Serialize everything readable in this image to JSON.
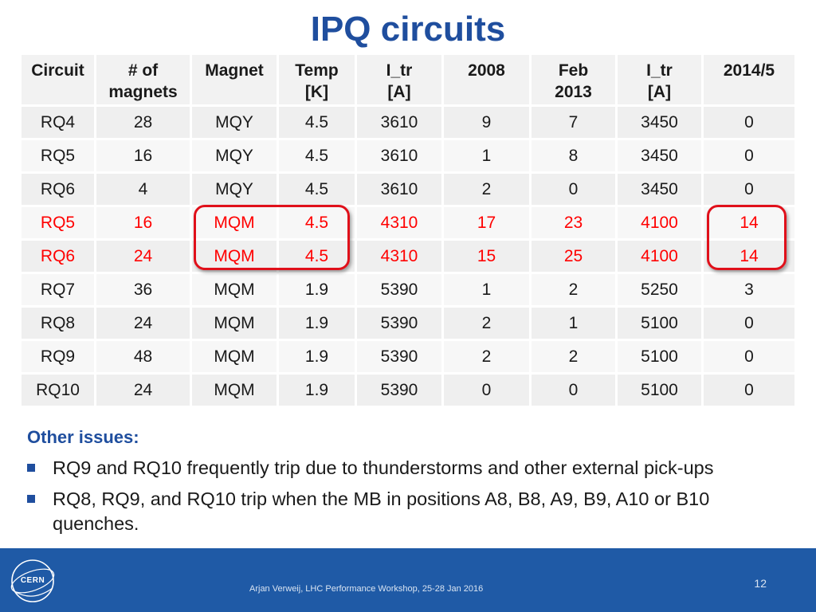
{
  "title": "IPQ circuits",
  "table": {
    "headers": [
      "Circuit",
      "# of\nmagnets",
      "Magnet",
      "Temp\n[K]",
      "I_tr\n[A]",
      "2008",
      "Feb\n2013",
      "I_tr\n[A]",
      "2014/5"
    ],
    "rows": [
      {
        "cells": [
          "RQ4",
          "28",
          "MQY",
          "4.5",
          "3610",
          "9",
          "7",
          "3450",
          "0"
        ],
        "highlight": false
      },
      {
        "cells": [
          "RQ5",
          "16",
          "MQY",
          "4.5",
          "3610",
          "1",
          "8",
          "3450",
          "0"
        ],
        "highlight": false
      },
      {
        "cells": [
          "RQ6",
          "4",
          "MQY",
          "4.5",
          "3610",
          "2",
          "0",
          "3450",
          "0"
        ],
        "highlight": false
      },
      {
        "cells": [
          "RQ5",
          "16",
          "MQM",
          "4.5",
          "4310",
          "17",
          "23",
          "4100",
          "14"
        ],
        "highlight": true
      },
      {
        "cells": [
          "RQ6",
          "24",
          "MQM",
          "4.5",
          "4310",
          "15",
          "25",
          "4100",
          "14"
        ],
        "highlight": true
      },
      {
        "cells": [
          "RQ7",
          "36",
          "MQM",
          "1.9",
          "5390",
          "1",
          "2",
          "5250",
          "3"
        ],
        "highlight": false
      },
      {
        "cells": [
          "RQ8",
          "24",
          "MQM",
          "1.9",
          "5390",
          "2",
          "1",
          "5100",
          "0"
        ],
        "highlight": false
      },
      {
        "cells": [
          "RQ9",
          "48",
          "MQM",
          "1.9",
          "5390",
          "2",
          "2",
          "5100",
          "0"
        ],
        "highlight": false
      },
      {
        "cells": [
          "RQ10",
          "24",
          "MQM",
          "1.9",
          "5390",
          "0",
          "0",
          "5100",
          "0"
        ],
        "highlight": false
      }
    ],
    "highlight_color": "#ff0000"
  },
  "issues": {
    "title": "Other issues:",
    "items": [
      "RQ9 and RQ10 frequently trip due to thunderstorms and other external pick-ups",
      "RQ8, RQ9, and RQ10 trip when the MB in positions A8, B8, A9, B9, A10 or B10 quenches."
    ]
  },
  "footer": {
    "text": "Arjan Verweij, LHC Performance Workshop, 25-28 Jan 2016",
    "page_number": "12",
    "logo_text": "CERN",
    "background": "#1f5aa6"
  },
  "colors": {
    "title": "#1f4e9e",
    "highlight_box": "#e0101a"
  }
}
